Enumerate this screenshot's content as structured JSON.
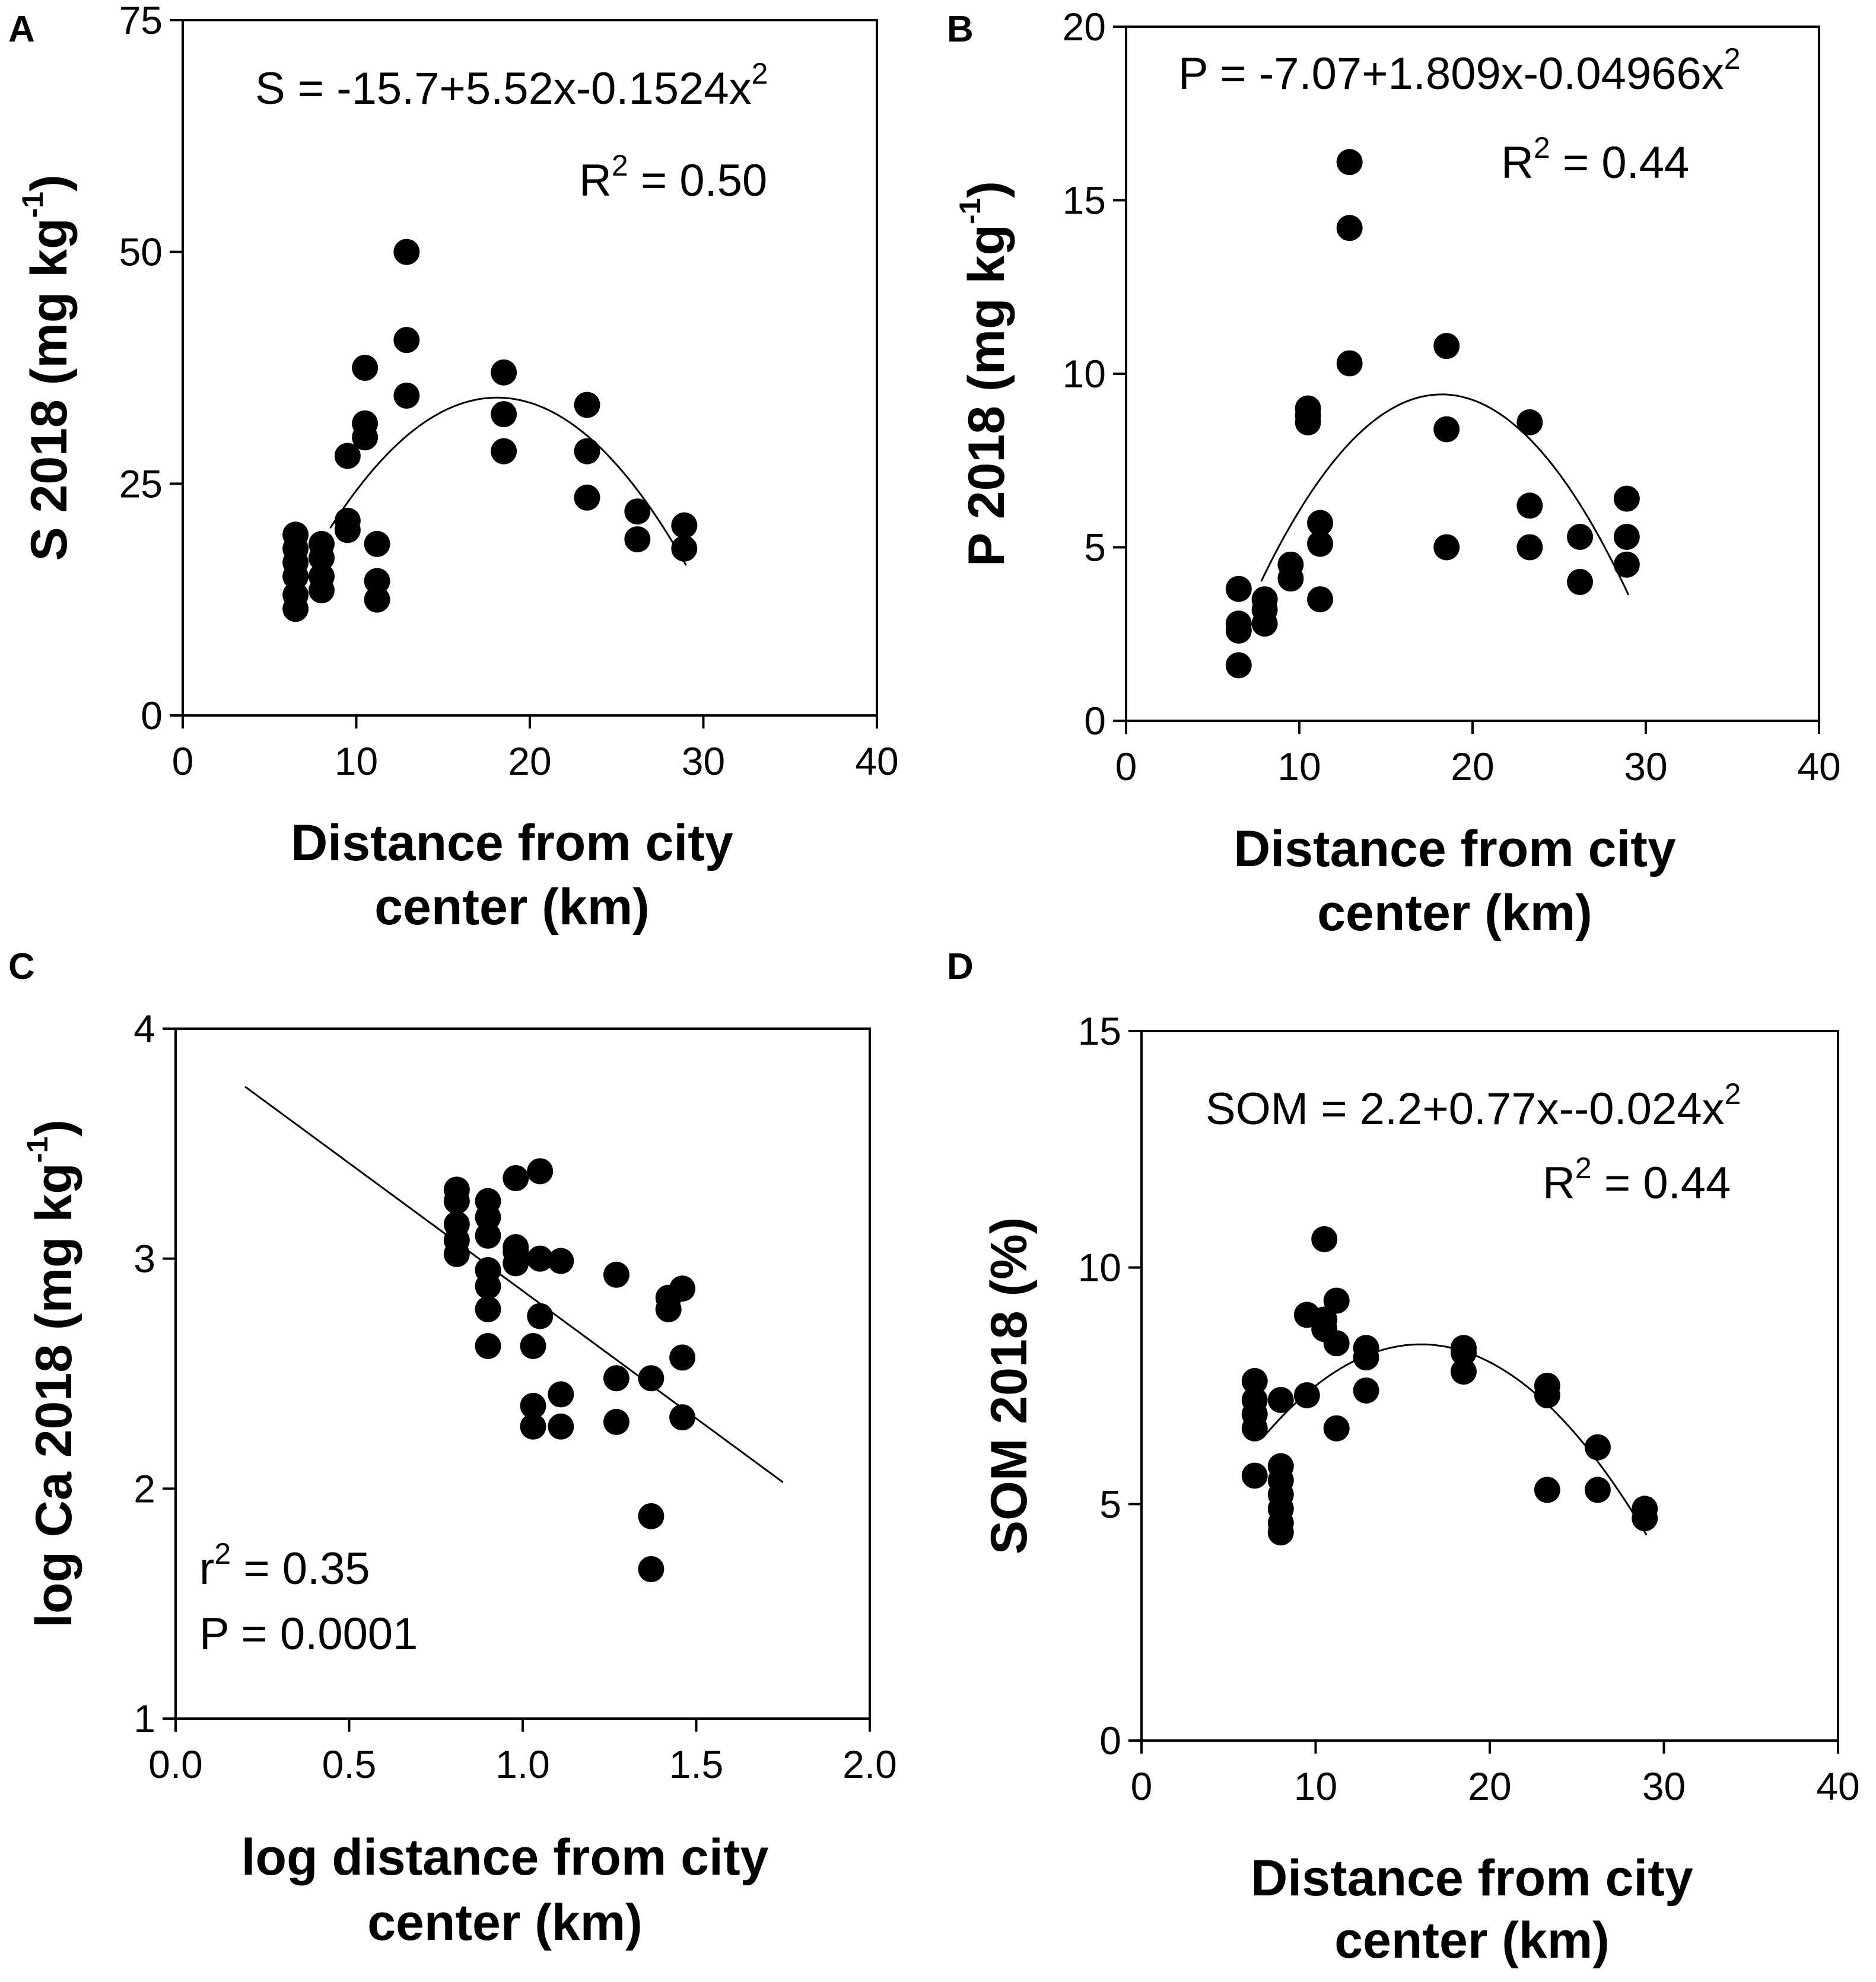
{
  "chart_data": [
    {
      "panel": "A",
      "type": "scatter",
      "xlabel_lines": [
        "Distance from city",
        "center (km)"
      ],
      "ylabel": {
        "text": "S 2018 (mg kg",
        "sup": "-1",
        "close": ")"
      },
      "xlim": [
        0,
        40
      ],
      "ylim": [
        0,
        75
      ],
      "xticks": [
        0,
        10,
        20,
        30,
        40
      ],
      "xtick_labels": [
        "0",
        "10",
        "20",
        "30",
        "40"
      ],
      "yticks": [
        0,
        25,
        50,
        75
      ],
      "ytick_labels": [
        "0",
        "25",
        "50",
        "75"
      ],
      "equation": {
        "text": "S = -15.7+5.52x-0.1524x",
        "sup": "2"
      },
      "r2": {
        "pre": "R",
        "sup": "2",
        "post": " = 0.50"
      },
      "fit": {
        "kind": "quadratic",
        "coef": [
          -15.7,
          5.52,
          -0.1524
        ],
        "x_range": [
          8.5,
          29
        ]
      },
      "points": [
        [
          6.5,
          11.5
        ],
        [
          6.5,
          13
        ],
        [
          6.5,
          15
        ],
        [
          6.5,
          16.5
        ],
        [
          6.5,
          18
        ],
        [
          6.5,
          19.5
        ],
        [
          8,
          13.5
        ],
        [
          8,
          15
        ],
        [
          8,
          17
        ],
        [
          8,
          18.5
        ],
        [
          9.5,
          20
        ],
        [
          9.5,
          21
        ],
        [
          9.5,
          28
        ],
        [
          10.5,
          30
        ],
        [
          10.5,
          31.5
        ],
        [
          10.5,
          37.5
        ],
        [
          11.2,
          12.5
        ],
        [
          11.2,
          14.5
        ],
        [
          11.2,
          18.5
        ],
        [
          12.9,
          34.5
        ],
        [
          12.9,
          40.5
        ],
        [
          12.9,
          50
        ],
        [
          18.5,
          28.5
        ],
        [
          18.5,
          32.5
        ],
        [
          18.5,
          37
        ],
        [
          23.3,
          23.5
        ],
        [
          23.3,
          28.5
        ],
        [
          23.3,
          33.5
        ],
        [
          26.2,
          19
        ],
        [
          26.2,
          22
        ],
        [
          28.9,
          18
        ],
        [
          28.9,
          20.5
        ]
      ]
    },
    {
      "panel": "B",
      "type": "scatter",
      "xlabel_lines": [
        "Distance from city",
        "center (km)"
      ],
      "ylabel": {
        "text": "P 2018 (mg kg",
        "sup": "-1",
        "close": ")"
      },
      "xlim": [
        0,
        40
      ],
      "ylim": [
        0,
        20
      ],
      "xticks": [
        0,
        10,
        20,
        30,
        40
      ],
      "xtick_labels": [
        "0",
        "10",
        "20",
        "30",
        "40"
      ],
      "yticks": [
        0,
        5,
        10,
        15,
        20
      ],
      "ytick_labels": [
        "0",
        "5",
        "10",
        "15",
        "20"
      ],
      "equation": {
        "text": "P = -7.07+1.809x-0.04966x",
        "sup": "2"
      },
      "r2": {
        "pre": "R",
        "sup": "2",
        "post": " = 0.44"
      },
      "fit": {
        "kind": "quadratic",
        "coef": [
          -7.07,
          1.809,
          -0.04966
        ],
        "x_range": [
          7.8,
          29
        ]
      },
      "points": [
        [
          6.5,
          1.6
        ],
        [
          6.5,
          2.6
        ],
        [
          6.5,
          2.8
        ],
        [
          6.5,
          3.8
        ],
        [
          8,
          2.8
        ],
        [
          8,
          3.2
        ],
        [
          8,
          3.5
        ],
        [
          9.5,
          4.1
        ],
        [
          9.5,
          4.5
        ],
        [
          10.5,
          8.6
        ],
        [
          10.5,
          8.8
        ],
        [
          10.5,
          9
        ],
        [
          11.2,
          3.5
        ],
        [
          11.2,
          5.1
        ],
        [
          11.2,
          5.7
        ],
        [
          12.9,
          10.3
        ],
        [
          12.9,
          14.2
        ],
        [
          12.9,
          16.1
        ],
        [
          18.5,
          5
        ],
        [
          18.5,
          8.4
        ],
        [
          18.5,
          10.8
        ],
        [
          23.3,
          5
        ],
        [
          23.3,
          6.2
        ],
        [
          23.3,
          8.6
        ],
        [
          26.2,
          4
        ],
        [
          26.2,
          5.3
        ],
        [
          28.9,
          4.5
        ],
        [
          28.9,
          5.3
        ],
        [
          28.9,
          6.4
        ]
      ]
    },
    {
      "panel": "C",
      "type": "scatter",
      "xlabel_lines": [
        "log distance from city",
        "center (km)"
      ],
      "ylabel": {
        "text": "log Ca 2018 (mg kg",
        "sup": "-1",
        "close": ")"
      },
      "xlim": [
        0,
        2
      ],
      "ylim": [
        1,
        4
      ],
      "xticks": [
        0,
        0.5,
        1,
        1.5,
        2
      ],
      "xtick_labels": [
        "0.0",
        "0.5",
        "1.0",
        "1.5",
        "2.0"
      ],
      "yticks": [
        1,
        2,
        3,
        4
      ],
      "ytick_labels": [
        "1",
        "2",
        "3",
        "4"
      ],
      "r2": {
        "pre": "r",
        "sup": "2",
        "post": " = 0.35"
      },
      "pvalue": "P = 0.0001",
      "fit": {
        "kind": "linear",
        "coef": [
          3.97,
          -1.11
        ],
        "x_range": [
          0.2,
          1.75
        ]
      },
      "points": [
        [
          0.81,
          3.02
        ],
        [
          0.81,
          3.08
        ],
        [
          0.81,
          3.15
        ],
        [
          0.81,
          3.25
        ],
        [
          0.81,
          3.3
        ],
        [
          0.9,
          2.62
        ],
        [
          0.9,
          2.78
        ],
        [
          0.9,
          2.88
        ],
        [
          0.9,
          2.95
        ],
        [
          0.9,
          3.1
        ],
        [
          0.9,
          3.18
        ],
        [
          0.9,
          3.25
        ],
        [
          0.98,
          2.98
        ],
        [
          0.98,
          3.03
        ],
        [
          0.98,
          3.05
        ],
        [
          0.98,
          3.35
        ],
        [
          1.03,
          2.27
        ],
        [
          1.03,
          2.36
        ],
        [
          1.03,
          2.62
        ],
        [
          1.05,
          2.75
        ],
        [
          1.05,
          3.0
        ],
        [
          1.05,
          3.38
        ],
        [
          1.11,
          2.27
        ],
        [
          1.11,
          2.41
        ],
        [
          1.11,
          2.99
        ],
        [
          1.27,
          2.29
        ],
        [
          1.27,
          2.48
        ],
        [
          1.27,
          2.93
        ],
        [
          1.37,
          1.65
        ],
        [
          1.37,
          1.88
        ],
        [
          1.37,
          2.48
        ],
        [
          1.42,
          2.78
        ],
        [
          1.42,
          2.83
        ],
        [
          1.46,
          2.31
        ],
        [
          1.46,
          2.57
        ],
        [
          1.46,
          2.87
        ]
      ]
    },
    {
      "panel": "D",
      "type": "scatter",
      "xlabel_lines": [
        "Distance from city",
        "center (km)"
      ],
      "ylabel": {
        "text": "SOM 2018 (%)"
      },
      "xlim": [
        0,
        40
      ],
      "ylim": [
        0,
        15
      ],
      "xticks": [
        0,
        10,
        20,
        30,
        40
      ],
      "xtick_labels": [
        "0",
        "10",
        "20",
        "30",
        "40"
      ],
      "yticks": [
        0,
        5,
        10,
        15
      ],
      "ytick_labels": [
        "0",
        "5",
        "10",
        "15"
      ],
      "equation": {
        "text": "SOM = 2.2+0.77x--0.024x",
        "sup": "2"
      },
      "r2": {
        "pre": "R",
        "sup": "2",
        "post": " = 0.44"
      },
      "fit": {
        "kind": "quadratic",
        "coef": [
          2.2,
          0.77,
          -0.024
        ],
        "x_range": [
          7,
          29
        ]
      },
      "points": [
        [
          6.5,
          5.6
        ],
        [
          6.5,
          6.6
        ],
        [
          6.5,
          6.9
        ],
        [
          6.5,
          7.2
        ],
        [
          6.5,
          7.6
        ],
        [
          8,
          4.4
        ],
        [
          8,
          4.6
        ],
        [
          8,
          4.9
        ],
        [
          8,
          5.2
        ],
        [
          8,
          5.5
        ],
        [
          8,
          5.8
        ],
        [
          8,
          7.2
        ],
        [
          9.5,
          7.3
        ],
        [
          9.5,
          9.0
        ],
        [
          10.5,
          8.7
        ],
        [
          10.5,
          8.9
        ],
        [
          10.5,
          10.6
        ],
        [
          11.2,
          6.6
        ],
        [
          11.2,
          8.4
        ],
        [
          11.2,
          9.3
        ],
        [
          12.9,
          7.4
        ],
        [
          12.9,
          8.1
        ],
        [
          12.9,
          8.3
        ],
        [
          18.5,
          7.8
        ],
        [
          18.5,
          8.2
        ],
        [
          18.5,
          8.3
        ],
        [
          23.3,
          5.3
        ],
        [
          23.3,
          7.3
        ],
        [
          23.3,
          7.5
        ],
        [
          26.2,
          5.3
        ],
        [
          26.2,
          6.2
        ],
        [
          28.9,
          4.7
        ],
        [
          28.9,
          4.9
        ]
      ]
    }
  ]
}
